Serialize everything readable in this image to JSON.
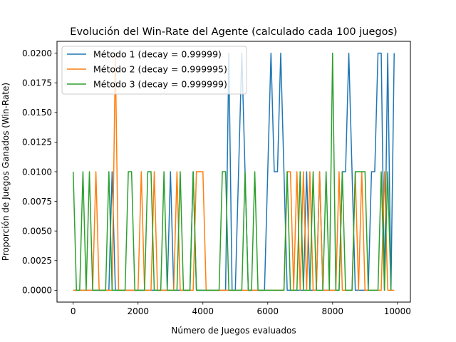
{
  "chart_data": {
    "type": "line",
    "title": "Evolución del Win-Rate del Agente (calculado cada 100 juegos)",
    "xlabel": "Número de Juegos evaluados",
    "ylabel": "Proporción de Juegos Ganados (Win-Rate)",
    "xlim": [
      -500,
      10400
    ],
    "ylim": [
      -0.001,
      0.021
    ],
    "xticks": [
      0,
      2000,
      4000,
      6000,
      8000,
      10000
    ],
    "xtick_labels": [
      "0",
      "2000",
      "4000",
      "6000",
      "8000",
      "10000"
    ],
    "yticks": [
      0.0,
      0.0025,
      0.005,
      0.0075,
      0.01,
      0.0125,
      0.015,
      0.0175,
      0.02
    ],
    "ytick_labels": [
      "0.0000",
      "0.0025",
      "0.0050",
      "0.0075",
      "0.0100",
      "0.0125",
      "0.0150",
      "0.0175",
      "0.0200"
    ],
    "grid": false,
    "legend_position": "top-left",
    "series": [
      {
        "name": "Método 1 (decay = 0.99999)",
        "color": "#1f77b4",
        "points": [
          [
            0,
            0
          ],
          [
            1100,
            0
          ],
          [
            1200,
            0.01
          ],
          [
            1300,
            0
          ],
          [
            2900,
            0
          ],
          [
            3000,
            0.01
          ],
          [
            3100,
            0
          ],
          [
            3600,
            0
          ],
          [
            3700,
            0.01
          ],
          [
            3800,
            0
          ],
          [
            4700,
            0
          ],
          [
            4800,
            0.02
          ],
          [
            4900,
            0
          ],
          [
            5000,
            0
          ],
          [
            5100,
            0.01
          ],
          [
            5200,
            0.02
          ],
          [
            5300,
            0.01
          ],
          [
            5400,
            0
          ],
          [
            5900,
            0
          ],
          [
            6000,
            0.01
          ],
          [
            6100,
            0.02
          ],
          [
            6200,
            0.01
          ],
          [
            6300,
            0.01
          ],
          [
            6400,
            0.02
          ],
          [
            6500,
            0.01
          ],
          [
            6600,
            0
          ],
          [
            7100,
            0
          ],
          [
            7200,
            0.01
          ],
          [
            7300,
            0
          ],
          [
            7500,
            0
          ],
          [
            7600,
            0.01
          ],
          [
            7700,
            0
          ],
          [
            8200,
            0
          ],
          [
            8300,
            0.01
          ],
          [
            8400,
            0.01
          ],
          [
            8500,
            0.02
          ],
          [
            8600,
            0.01
          ],
          [
            8700,
            0
          ],
          [
            9100,
            0
          ],
          [
            9200,
            0.01
          ],
          [
            9300,
            0.01
          ],
          [
            9400,
            0.02
          ],
          [
            9500,
            0.02
          ],
          [
            9600,
            0
          ],
          [
            9700,
            0.02
          ],
          [
            9800,
            0
          ],
          [
            9900,
            0.02
          ]
        ]
      },
      {
        "name": "Método 2 (decay = 0.999995)",
        "color": "#ff7f0e",
        "points": [
          [
            0,
            0
          ],
          [
            600,
            0
          ],
          [
            700,
            0.01
          ],
          [
            800,
            0
          ],
          [
            1200,
            0
          ],
          [
            1300,
            0.02
          ],
          [
            1400,
            0
          ],
          [
            2000,
            0
          ],
          [
            2100,
            0.01
          ],
          [
            2200,
            0
          ],
          [
            2400,
            0
          ],
          [
            2500,
            0.01
          ],
          [
            2600,
            0
          ],
          [
            3100,
            0
          ],
          [
            3200,
            0.01
          ],
          [
            3300,
            0
          ],
          [
            3700,
            0
          ],
          [
            3800,
            0.01
          ],
          [
            3900,
            0.01
          ],
          [
            4000,
            0.01
          ],
          [
            4100,
            0
          ],
          [
            6500,
            0
          ],
          [
            6600,
            0.01
          ],
          [
            6700,
            0.01
          ],
          [
            6800,
            0
          ],
          [
            6900,
            0.01
          ],
          [
            7000,
            0
          ],
          [
            7100,
            0.01
          ],
          [
            7200,
            0
          ],
          [
            7300,
            0.01
          ],
          [
            7400,
            0
          ],
          [
            7500,
            0
          ],
          [
            7600,
            0.01
          ],
          [
            7700,
            0
          ],
          [
            8100,
            0
          ],
          [
            8200,
            0.01
          ],
          [
            8300,
            0
          ],
          [
            8600,
            0
          ],
          [
            8700,
            0.01
          ],
          [
            8800,
            0
          ],
          [
            8900,
            0.01
          ],
          [
            9000,
            0
          ],
          [
            9500,
            0
          ],
          [
            9600,
            0.01
          ],
          [
            9700,
            0
          ],
          [
            9900,
            0
          ]
        ]
      },
      {
        "name": "Método 3 (decay = 0.999999)",
        "color": "#2ca02c",
        "points": [
          [
            0,
            0.01
          ],
          [
            100,
            0
          ],
          [
            200,
            0
          ],
          [
            300,
            0.01
          ],
          [
            400,
            0
          ],
          [
            500,
            0.01
          ],
          [
            600,
            0
          ],
          [
            1000,
            0
          ],
          [
            1100,
            0.01
          ],
          [
            1200,
            0
          ],
          [
            1600,
            0
          ],
          [
            1700,
            0.01
          ],
          [
            1800,
            0.01
          ],
          [
            1900,
            0
          ],
          [
            2200,
            0
          ],
          [
            2300,
            0.01
          ],
          [
            2400,
            0.01
          ],
          [
            2500,
            0
          ],
          [
            2700,
            0
          ],
          [
            2800,
            0.01
          ],
          [
            2900,
            0
          ],
          [
            3200,
            0
          ],
          [
            3300,
            0.01
          ],
          [
            3400,
            0
          ],
          [
            3600,
            0
          ],
          [
            3700,
            0.01
          ],
          [
            3800,
            0
          ],
          [
            4500,
            0
          ],
          [
            4600,
            0.01
          ],
          [
            4700,
            0.01
          ],
          [
            4800,
            0
          ],
          [
            5200,
            0
          ],
          [
            5300,
            0.01
          ],
          [
            5400,
            0
          ],
          [
            5500,
            0
          ],
          [
            5600,
            0.01
          ],
          [
            5700,
            0
          ],
          [
            6500,
            0
          ],
          [
            6600,
            0.01
          ],
          [
            6700,
            0
          ],
          [
            6900,
            0
          ],
          [
            7000,
            0.01
          ],
          [
            7100,
            0
          ],
          [
            7300,
            0
          ],
          [
            7400,
            0.01
          ],
          [
            7500,
            0
          ],
          [
            7700,
            0
          ],
          [
            7800,
            0.01
          ],
          [
            7900,
            0
          ],
          [
            8000,
            0.02
          ],
          [
            8100,
            0
          ],
          [
            8200,
            0
          ],
          [
            8300,
            0.01
          ],
          [
            8400,
            0
          ],
          [
            8600,
            0
          ],
          [
            8700,
            0.01
          ],
          [
            8800,
            0.01
          ],
          [
            8900,
            0.01
          ],
          [
            9000,
            0.01
          ],
          [
            9100,
            0
          ],
          [
            9400,
            0
          ],
          [
            9500,
            0.01
          ],
          [
            9600,
            0
          ],
          [
            9700,
            0.01
          ],
          [
            9800,
            0
          ]
        ]
      }
    ]
  }
}
